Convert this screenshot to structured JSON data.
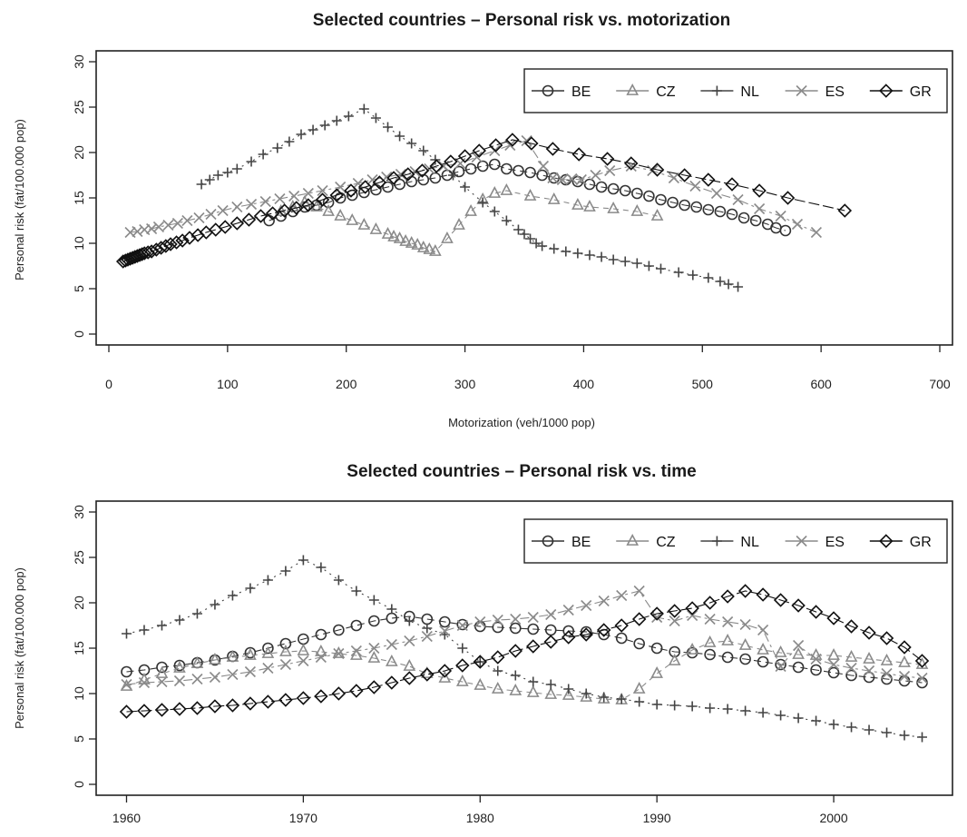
{
  "chart_data": [
    {
      "type": "scatter",
      "title": "Selected countries – Personal risk vs. motorization",
      "xlabel": "Motorization (veh/1000 pop)",
      "ylabel": "Personal risk (fat/100.000 pop)",
      "xlim": [
        0,
        700
      ],
      "ylim": [
        0,
        30
      ],
      "xticks": [
        0,
        100,
        200,
        300,
        400,
        500,
        600,
        700
      ],
      "yticks": [
        0,
        5,
        10,
        15,
        20,
        25,
        30
      ],
      "legend": "top-right",
      "series": [
        {
          "name": "BE",
          "marker": "circle",
          "x": [
            135,
            145,
            155,
            165,
            175,
            185,
            195,
            205,
            215,
            225,
            235,
            245,
            255,
            265,
            275,
            285,
            295,
            305,
            315,
            325,
            335,
            345,
            355,
            365,
            375,
            385,
            395,
            405,
            415,
            425,
            435,
            445,
            455,
            465,
            475,
            485,
            495,
            505,
            515,
            525,
            535,
            545,
            555,
            562,
            570
          ],
          "y": [
            12.5,
            13.0,
            13.5,
            14.0,
            14.2,
            14.5,
            15.0,
            15.3,
            15.6,
            15.9,
            16.2,
            16.5,
            16.8,
            17.0,
            17.2,
            17.5,
            17.9,
            18.2,
            18.5,
            18.7,
            18.2,
            18.0,
            17.8,
            17.5,
            17.2,
            17.0,
            16.8,
            16.5,
            16.2,
            16.0,
            15.8,
            15.5,
            15.2,
            14.8,
            14.5,
            14.2,
            14.0,
            13.7,
            13.5,
            13.2,
            12.8,
            12.5,
            12.1,
            11.7,
            11.4
          ]
        },
        {
          "name": "CZ",
          "marker": "triangle",
          "x": [
            145,
            155,
            165,
            175,
            185,
            195,
            205,
            215,
            225,
            235,
            240,
            245,
            250,
            255,
            260,
            265,
            270,
            275,
            285,
            295,
            305,
            315,
            325,
            335,
            355,
            375,
            395,
            405,
            425,
            445,
            462
          ],
          "y": [
            13.5,
            14.0,
            14.5,
            14.0,
            13.5,
            13.0,
            12.5,
            12.0,
            11.5,
            11.0,
            10.7,
            10.5,
            10.2,
            10.0,
            9.8,
            9.5,
            9.3,
            9.1,
            10.5,
            12.0,
            13.5,
            14.8,
            15.5,
            15.8,
            15.2,
            14.8,
            14.2,
            14.0,
            13.8,
            13.5,
            13.0
          ]
        },
        {
          "name": "NL",
          "marker": "plus",
          "x": [
            78,
            85,
            92,
            100,
            108,
            120,
            130,
            142,
            152,
            162,
            172,
            182,
            192,
            202,
            215,
            225,
            235,
            245,
            255,
            265,
            275,
            290,
            300,
            315,
            325,
            335,
            345,
            350,
            355,
            360,
            365,
            375,
            385,
            395,
            405,
            415,
            425,
            435,
            445,
            455,
            465,
            480,
            492,
            505,
            515,
            522,
            530
          ],
          "y": [
            16.5,
            17.0,
            17.5,
            17.8,
            18.2,
            19.0,
            19.8,
            20.5,
            21.2,
            22.0,
            22.5,
            23.0,
            23.5,
            24.0,
            24.8,
            23.8,
            22.8,
            21.8,
            21.0,
            20.2,
            19.2,
            17.5,
            16.2,
            14.5,
            13.5,
            12.5,
            11.5,
            11.0,
            10.5,
            10.0,
            9.7,
            9.4,
            9.1,
            8.9,
            8.7,
            8.5,
            8.2,
            8.0,
            7.8,
            7.5,
            7.2,
            6.8,
            6.5,
            6.2,
            5.8,
            5.5,
            5.2
          ]
        },
        {
          "name": "ES",
          "marker": "x",
          "x": [
            18,
            24,
            30,
            36,
            42,
            50,
            58,
            66,
            76,
            86,
            96,
            108,
            120,
            132,
            144,
            156,
            168,
            180,
            195,
            210,
            222,
            234,
            246,
            258,
            270,
            282,
            296,
            310,
            325,
            338,
            352,
            366,
            374,
            382,
            390,
            398,
            410,
            422,
            440,
            458,
            476,
            494,
            512,
            530,
            548,
            566,
            580,
            596
          ],
          "y": [
            11.2,
            11.3,
            11.5,
            11.6,
            11.8,
            12.0,
            12.2,
            12.5,
            12.8,
            13.2,
            13.6,
            14.0,
            14.3,
            14.6,
            14.9,
            15.2,
            15.5,
            15.8,
            16.2,
            16.6,
            17.0,
            17.3,
            17.6,
            17.9,
            18.2,
            18.5,
            18.8,
            19.5,
            20.2,
            20.8,
            21.3,
            18.5,
            17.2,
            17.0,
            17.1,
            17.0,
            17.5,
            18.0,
            18.5,
            18.0,
            17.2,
            16.3,
            15.5,
            14.8,
            13.8,
            13.0,
            12.1,
            11.2
          ]
        },
        {
          "name": "GR",
          "marker": "diamond",
          "x": [
            12,
            14,
            16,
            18,
            20,
            22,
            24,
            26,
            28,
            30,
            33,
            36,
            40,
            44,
            48,
            52,
            57,
            62,
            68,
            75,
            82,
            90,
            98,
            108,
            118,
            128,
            138,
            148,
            158,
            168,
            180,
            192,
            204,
            216,
            228,
            240,
            252,
            264,
            276,
            288,
            300,
            312,
            326,
            340,
            356,
            374,
            396,
            420,
            440,
            462,
            485,
            505,
            525,
            548,
            572,
            620
          ],
          "y": [
            8.0,
            8.1,
            8.2,
            8.3,
            8.4,
            8.5,
            8.6,
            8.7,
            8.8,
            8.9,
            9.0,
            9.1,
            9.3,
            9.5,
            9.7,
            9.9,
            10.1,
            10.3,
            10.6,
            10.9,
            11.2,
            11.5,
            11.8,
            12.2,
            12.6,
            13.0,
            13.3,
            13.6,
            13.9,
            14.2,
            14.8,
            15.3,
            15.8,
            16.2,
            16.7,
            17.2,
            17.6,
            18.0,
            18.5,
            19.0,
            19.6,
            20.2,
            20.8,
            21.4,
            21.0,
            20.4,
            19.8,
            19.3,
            18.8,
            18.1,
            17.5,
            17.0,
            16.5,
            15.8,
            15.0,
            13.6
          ]
        }
      ]
    },
    {
      "type": "scatter",
      "title": "Selected countries – Personal risk vs. time",
      "xlabel": "",
      "ylabel": "Personal risk (fat/100.000 pop)",
      "xlim": [
        1959,
        2006
      ],
      "ylim": [
        0,
        30
      ],
      "xticks": [
        1960,
        1970,
        1980,
        1990,
        2000
      ],
      "yticks": [
        0,
        5,
        10,
        15,
        20,
        25,
        30
      ],
      "legend": "top-right",
      "series": [
        {
          "name": "BE",
          "marker": "circle",
          "x": [
            1960,
            1961,
            1962,
            1963,
            1964,
            1965,
            1966,
            1967,
            1968,
            1969,
            1970,
            1971,
            1972,
            1973,
            1974,
            1975,
            1976,
            1977,
            1978,
            1979,
            1980,
            1981,
            1982,
            1983,
            1984,
            1985,
            1986,
            1987,
            1988,
            1989,
            1990,
            1991,
            1992,
            1993,
            1994,
            1995,
            1996,
            1997,
            1998,
            1999,
            2000,
            2001,
            2002,
            2003,
            2004,
            2005
          ],
          "y": [
            12.4,
            12.6,
            12.9,
            13.1,
            13.4,
            13.7,
            14.1,
            14.5,
            15.0,
            15.5,
            16.0,
            16.5,
            17.0,
            17.5,
            18.0,
            18.3,
            18.5,
            18.2,
            17.9,
            17.6,
            17.4,
            17.3,
            17.2,
            17.1,
            17.0,
            16.9,
            16.8,
            16.5,
            16.1,
            15.5,
            15.0,
            14.6,
            14.5,
            14.3,
            14.0,
            13.8,
            13.5,
            13.2,
            12.9,
            12.6,
            12.3,
            12.0,
            11.8,
            11.6,
            11.4,
            11.2
          ]
        },
        {
          "name": "CZ",
          "marker": "triangle",
          "x": [
            1960,
            1961,
            1962,
            1963,
            1964,
            1965,
            1966,
            1967,
            1968,
            1969,
            1970,
            1971,
            1972,
            1973,
            1974,
            1975,
            1976,
            1977,
            1978,
            1979,
            1980,
            1981,
            1982,
            1983,
            1984,
            1985,
            1986,
            1987,
            1988,
            1989,
            1990,
            1991,
            1992,
            1993,
            1994,
            1995,
            1996,
            1997,
            1998,
            1999,
            2000,
            2001,
            2002,
            2003,
            2004,
            2005
          ],
          "y": [
            10.8,
            11.5,
            12.2,
            12.8,
            13.3,
            13.7,
            14.0,
            14.2,
            14.4,
            14.6,
            14.7,
            14.6,
            14.4,
            14.2,
            13.9,
            13.5,
            13.0,
            12.2,
            11.7,
            11.3,
            10.9,
            10.5,
            10.3,
            10.1,
            9.9,
            9.8,
            9.6,
            9.4,
            9.3,
            10.5,
            12.2,
            13.6,
            14.8,
            15.6,
            15.8,
            15.3,
            14.8,
            14.5,
            14.3,
            14.2,
            14.2,
            14.0,
            13.8,
            13.6,
            13.4,
            13.2
          ]
        },
        {
          "name": "NL",
          "marker": "plus",
          "x": [
            1960,
            1961,
            1962,
            1963,
            1964,
            1965,
            1966,
            1967,
            1968,
            1969,
            1970,
            1971,
            1972,
            1973,
            1974,
            1975,
            1976,
            1977,
            1978,
            1979,
            1980,
            1981,
            1982,
            1983,
            1984,
            1985,
            1986,
            1987,
            1988,
            1989,
            1990,
            1991,
            1992,
            1993,
            1994,
            1995,
            1996,
            1997,
            1998,
            1999,
            2000,
            2001,
            2002,
            2003,
            2004,
            2005
          ],
          "y": [
            16.6,
            17.0,
            17.5,
            18.1,
            18.8,
            19.8,
            20.8,
            21.6,
            22.5,
            23.5,
            24.7,
            23.9,
            22.5,
            21.3,
            20.3,
            19.3,
            18.0,
            17.2,
            16.5,
            15.0,
            13.5,
            12.5,
            12.0,
            11.3,
            11.0,
            10.5,
            10.0,
            9.6,
            9.4,
            9.1,
            8.8,
            8.7,
            8.6,
            8.4,
            8.3,
            8.1,
            7.9,
            7.6,
            7.3,
            7.0,
            6.6,
            6.3,
            6.0,
            5.7,
            5.4,
            5.2
          ]
        },
        {
          "name": "ES",
          "marker": "x",
          "x": [
            1960,
            1961,
            1962,
            1963,
            1964,
            1965,
            1966,
            1967,
            1968,
            1969,
            1970,
            1971,
            1972,
            1973,
            1974,
            1975,
            1976,
            1977,
            1978,
            1979,
            1980,
            1981,
            1982,
            1983,
            1984,
            1985,
            1986,
            1987,
            1988,
            1989,
            1990,
            1991,
            1992,
            1993,
            1994,
            1995,
            1996,
            1997,
            1998,
            1999,
            2000,
            2001,
            2002,
            2003,
            2004,
            2005
          ],
          "y": [
            11.0,
            11.2,
            11.3,
            11.4,
            11.6,
            11.8,
            12.1,
            12.4,
            12.8,
            13.2,
            13.6,
            14.0,
            14.4,
            14.7,
            15.0,
            15.4,
            15.8,
            16.3,
            16.9,
            17.5,
            17.9,
            18.1,
            18.2,
            18.4,
            18.7,
            19.2,
            19.7,
            20.2,
            20.8,
            21.3,
            18.4,
            18.0,
            18.6,
            18.2,
            17.9,
            17.6,
            17.0,
            13.0,
            15.3,
            13.8,
            13.2,
            12.8,
            12.5,
            12.2,
            11.9,
            11.7
          ]
        },
        {
          "name": "GR",
          "marker": "diamond",
          "x": [
            1960,
            1961,
            1962,
            1963,
            1964,
            1965,
            1966,
            1967,
            1968,
            1969,
            1970,
            1971,
            1972,
            1973,
            1974,
            1975,
            1976,
            1977,
            1978,
            1979,
            1980,
            1981,
            1982,
            1983,
            1984,
            1985,
            1986,
            1987,
            1988,
            1989,
            1990,
            1991,
            1992,
            1993,
            1994,
            1995,
            1996,
            1997,
            1998,
            1999,
            2000,
            2001,
            2002,
            2003,
            2004,
            2005
          ],
          "y": [
            8.0,
            8.1,
            8.2,
            8.3,
            8.4,
            8.6,
            8.7,
            8.9,
            9.1,
            9.3,
            9.5,
            9.7,
            10.0,
            10.3,
            10.7,
            11.2,
            11.7,
            12.1,
            12.5,
            13.1,
            13.5,
            14.0,
            14.7,
            15.2,
            15.7,
            16.2,
            16.5,
            17.0,
            17.5,
            18.2,
            18.8,
            19.1,
            19.4,
            20.0,
            20.7,
            21.3,
            20.9,
            20.3,
            19.7,
            19.0,
            18.3,
            17.4,
            16.7,
            16.1,
            15.1,
            13.6
          ]
        }
      ]
    }
  ]
}
